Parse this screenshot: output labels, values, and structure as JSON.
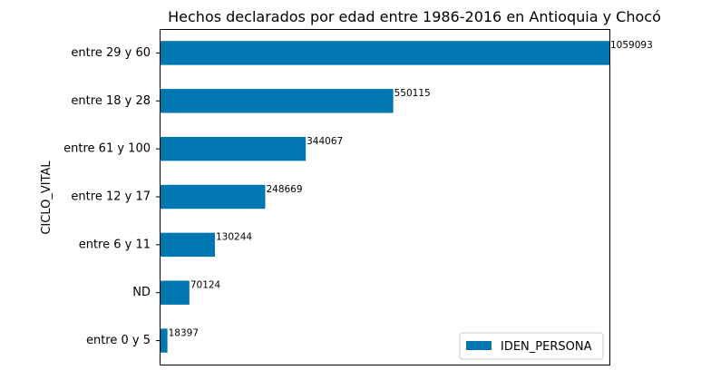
{
  "chart_data": {
    "type": "bar",
    "orientation": "horizontal",
    "title": "Hechos declarados por edad entre 1986-2016 en Antioquia y Chocó",
    "ylabel": "CICLO_VITAL",
    "xlabel": "",
    "categories": [
      "entre 0 y 5",
      "ND",
      "entre 6 y 11",
      "entre 12 y 17",
      "entre 61 y 100",
      "entre 18 y 28",
      "entre 29 y 60"
    ],
    "series": [
      {
        "name": "IDEN_PERSONA",
        "values": [
          18397,
          70124,
          130244,
          248669,
          344067,
          550115,
          1059093
        ],
        "color": "#0077b0"
      }
    ],
    "data_labels": [
      "18397",
      "70124",
      "130244",
      "248669",
      "344067",
      "550115",
      "1059093"
    ],
    "xlim": [
      0,
      1059093
    ],
    "x_ticks_visible": false,
    "grid": false,
    "legend_position": "lower-right"
  }
}
